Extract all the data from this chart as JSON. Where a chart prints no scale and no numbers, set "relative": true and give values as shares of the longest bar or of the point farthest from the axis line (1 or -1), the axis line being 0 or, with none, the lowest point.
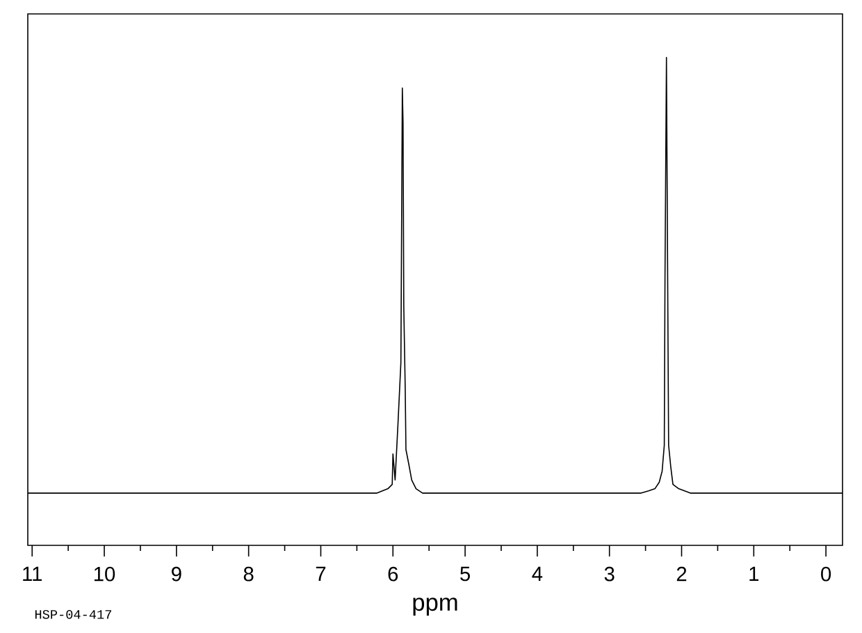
{
  "chart_data": {
    "type": "line",
    "relative": true,
    "xlabel": "ppm",
    "annotations": [
      "HSP-04-417"
    ],
    "xlim": [
      11.06,
      -0.23
    ],
    "xticks": [
      0,
      1,
      2,
      3,
      4,
      5,
      6,
      7,
      8,
      9,
      10,
      11
    ],
    "line_style": "solid",
    "series": [
      {
        "color": "#000000",
        "x": [
          11.06,
          6.22,
          6.07,
          6.01,
          6.0,
          5.97,
          5.93,
          5.89,
          5.87,
          5.86,
          5.85,
          5.83,
          5.82,
          5.78,
          5.74,
          5.68,
          5.59,
          2.56,
          2.46,
          2.37,
          2.31,
          2.27,
          2.24,
          2.23,
          2.21,
          2.19,
          2.18,
          2.15,
          2.12,
          2.04,
          1.88,
          -0.23
        ],
        "values": [
          0,
          0,
          0.01,
          0.02,
          0.09,
          0.03,
          0.16,
          0.3,
          0.93,
          0.85,
          0.43,
          0.24,
          0.1,
          0.066,
          0.03,
          0.01,
          0,
          0,
          0.005,
          0.01,
          0.025,
          0.05,
          0.11,
          0.5,
          1.0,
          0.4,
          0.11,
          0.06,
          0.02,
          0.01,
          0,
          0
        ]
      }
    ]
  }
}
